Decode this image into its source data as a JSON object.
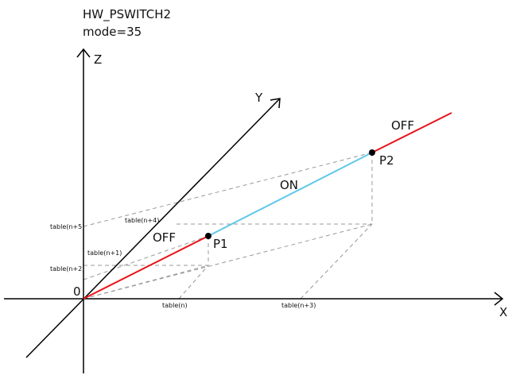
{
  "header": {
    "title": "HW_PSWITCH2",
    "mode": "mode=35"
  },
  "axes": {
    "x": "X",
    "y": "Y",
    "z": "Z",
    "origin": "0"
  },
  "points": {
    "p1": "P1",
    "p2": "P2"
  },
  "segments": {
    "off_low": "OFF",
    "on": "ON",
    "off_high": "OFF"
  },
  "table_labels": {
    "n": "table(n)",
    "n1": "table(n+1)",
    "n2": "table(n+2)",
    "n3": "table(n+3)",
    "n4": "table(n+4)",
    "n5": "table(n+5)"
  }
}
